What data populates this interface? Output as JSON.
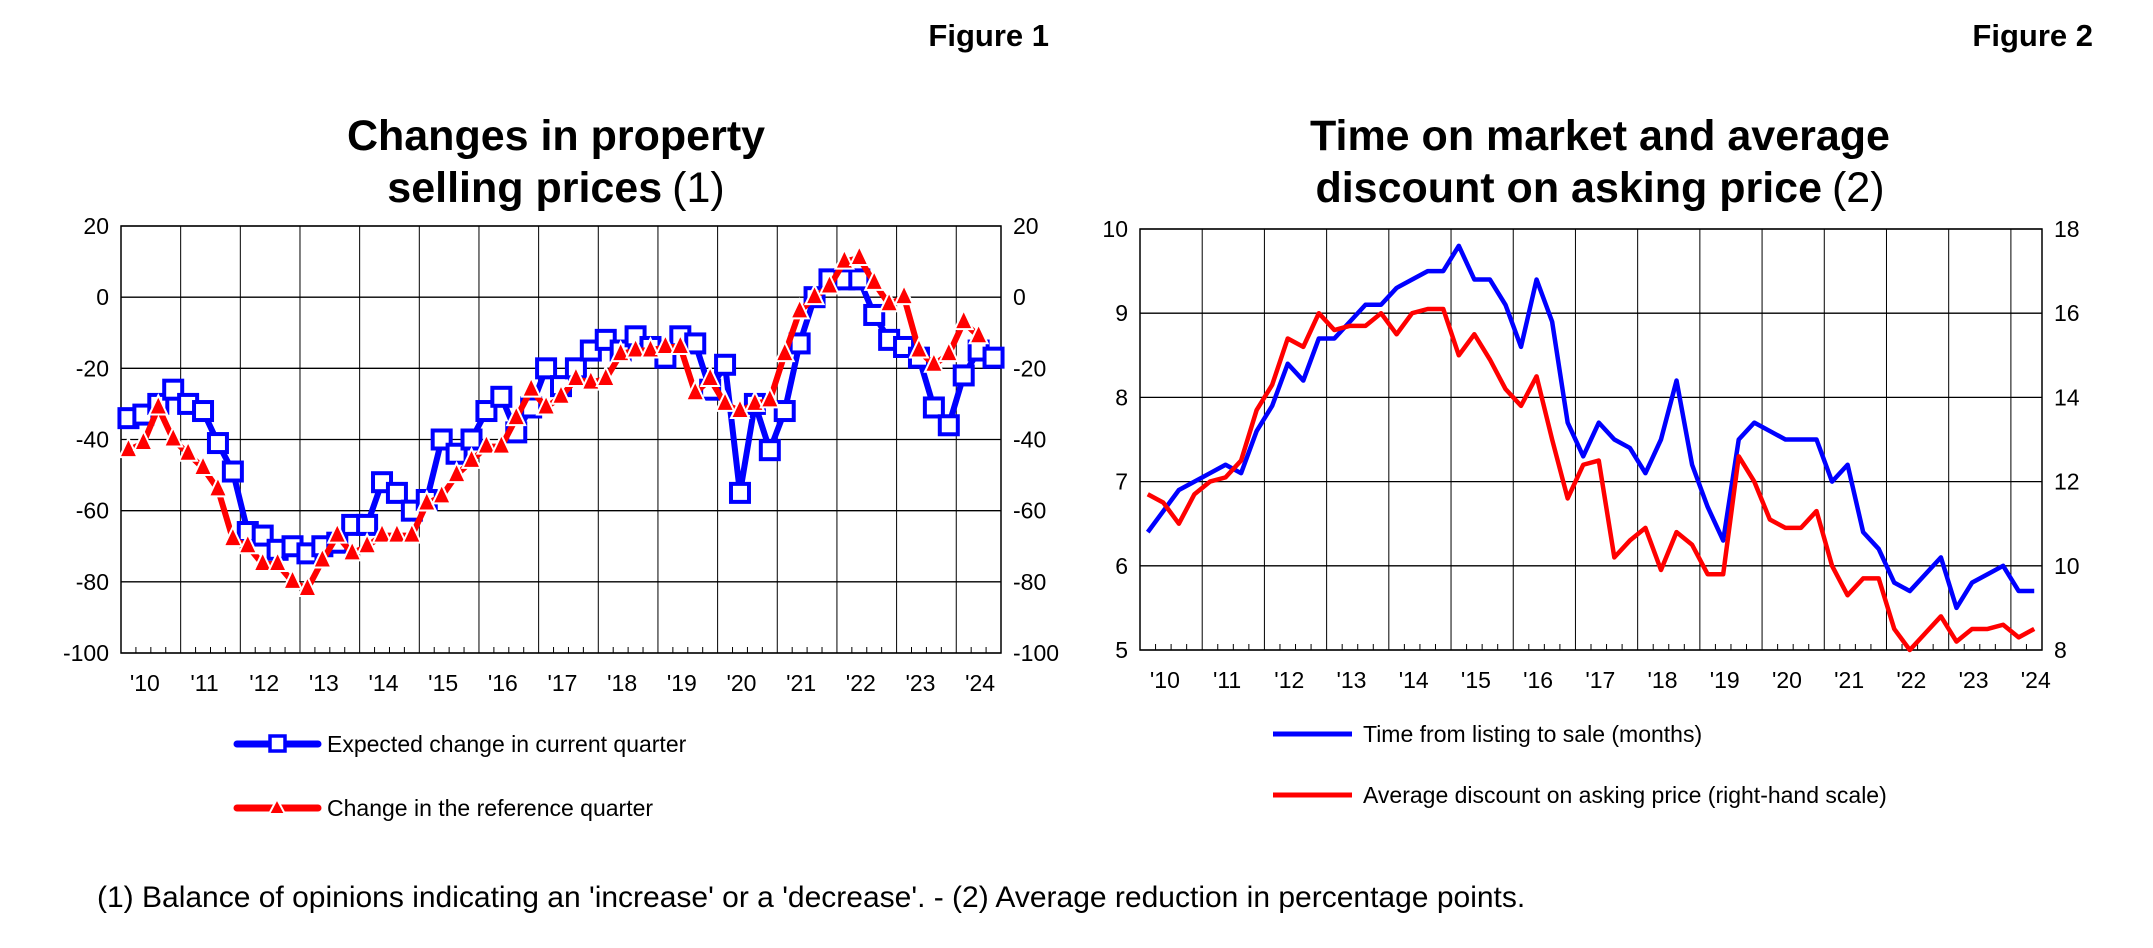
{
  "footnote": "(1) Balance of opinions indicating an 'increase' or a 'decrease'. - (2) Average reduction in percentage points.",
  "colors": {
    "blue": "#0000ff",
    "red": "#ff0000",
    "grid": "#000000"
  },
  "chart_data": [
    {
      "figure_label": "Figure 1",
      "type": "line",
      "title_lines": [
        "Changes in property",
        "selling prices"
      ],
      "title_note": "(1)",
      "frequency": "quarterly, starting 2010 Q1",
      "x_tick_labels": [
        "'10",
        "'11",
        "'12",
        "'13",
        "'14",
        "'15",
        "'16",
        "'17",
        "'18",
        "'19",
        "'20",
        "'21",
        "'22",
        "'23",
        "'24"
      ],
      "ylim": [
        -100,
        20
      ],
      "y_ticks": [
        20,
        0,
        -20,
        -40,
        -60,
        -80,
        -100
      ],
      "y_right_ticks": [
        20,
        0,
        -20,
        -40,
        -60,
        -80,
        -100
      ],
      "grid": true,
      "series": [
        {
          "name": "Expected change in current quarter",
          "color": "#0000ff",
          "marker": "square",
          "values": [
            -34,
            -33,
            -30,
            -26,
            -30,
            -32,
            -41,
            -49,
            -66,
            -67,
            -71,
            -70,
            -72,
            -70,
            -69,
            -64,
            -64,
            -52,
            -55,
            -60,
            -57,
            -40,
            -44,
            -40,
            -32,
            -28,
            -38,
            -31,
            -20,
            -25,
            -20,
            -15,
            -12,
            -15,
            -11,
            -14,
            -17,
            -11,
            -13,
            -26,
            -19,
            -55,
            -30,
            -43,
            -32,
            -13,
            0,
            5,
            5,
            5,
            -5,
            -12,
            -14,
            -17,
            -31,
            -36,
            -22,
            -15,
            -17
          ]
        },
        {
          "name": "Change in the reference quarter",
          "color": "#ff0000",
          "marker": "triangle",
          "values": [
            -43,
            -41,
            -31,
            -40,
            -44,
            -48,
            -54,
            -68,
            -70,
            -75,
            -75,
            -80,
            -82,
            -74,
            -67,
            -72,
            -70,
            -67,
            -67,
            -67,
            -58,
            -56,
            -50,
            -46,
            -42,
            -42,
            -34,
            -26,
            -31,
            -28,
            -23,
            -24,
            -23,
            -16,
            -15,
            -15,
            -14,
            -14,
            -27,
            -23,
            -30,
            -32,
            -30,
            -29,
            -16,
            -4,
            0,
            3,
            10,
            11,
            4,
            -2,
            0,
            -15,
            -19,
            -16,
            -7,
            -11
          ]
        }
      ]
    },
    {
      "figure_label": "Figure 2",
      "type": "line",
      "title_lines": [
        "Time on market and average",
        "discount on asking price"
      ],
      "title_note": "(2)",
      "frequency": "quarterly, starting 2010 Q1",
      "x_tick_labels": [
        "'10",
        "'11",
        "'12",
        "'13",
        "'14",
        "'15",
        "'16",
        "'17",
        "'18",
        "'19",
        "'20",
        "'21",
        "'22",
        "'23",
        "'24"
      ],
      "ylim": [
        5,
        10
      ],
      "y2lim": [
        8,
        18
      ],
      "y_ticks": [
        10,
        9,
        8,
        7,
        6,
        5
      ],
      "y_right_ticks": [
        18,
        16,
        14,
        12,
        10,
        8
      ],
      "grid": true,
      "series": [
        {
          "name": "Time from listing to sale (months)",
          "color": "#0000ff",
          "axis": "left",
          "values": [
            6.4,
            6.65,
            6.9,
            7.0,
            7.1,
            7.2,
            7.1,
            7.6,
            7.9,
            8.4,
            8.2,
            8.7,
            8.7,
            8.9,
            9.1,
            9.1,
            9.3,
            9.4,
            9.5,
            9.5,
            9.8,
            9.4,
            9.4,
            9.1,
            8.6,
            9.4,
            8.9,
            7.7,
            7.3,
            7.7,
            7.5,
            7.4,
            7.1,
            7.5,
            8.2,
            7.2,
            6.7,
            6.3,
            7.5,
            7.7,
            7.6,
            7.5,
            7.5,
            7.5,
            7.0,
            7.2,
            6.4,
            6.2,
            5.8,
            5.7,
            5.9,
            6.1,
            5.5,
            5.8,
            5.9,
            6.0,
            5.7,
            5.7
          ]
        },
        {
          "name": "Average discount on asking price (right-hand scale)",
          "color": "#ff0000",
          "axis": "right",
          "values": [
            11.7,
            11.5,
            11.0,
            11.7,
            12.0,
            12.1,
            12.5,
            13.7,
            14.3,
            15.4,
            15.2,
            16.0,
            15.6,
            15.7,
            15.7,
            16.0,
            15.5,
            16.0,
            16.1,
            16.1,
            15.0,
            15.5,
            14.9,
            14.2,
            13.8,
            14.5,
            13.0,
            11.6,
            12.4,
            12.5,
            10.2,
            10.6,
            10.9,
            9.9,
            10.8,
            10.5,
            9.8,
            9.8,
            12.6,
            12.0,
            11.1,
            10.9,
            10.9,
            11.3,
            10.0,
            9.3,
            9.7,
            9.7,
            8.5,
            8.0,
            8.4,
            8.8,
            8.2,
            8.5,
            8.5,
            8.6,
            8.3,
            8.5
          ]
        }
      ]
    }
  ]
}
